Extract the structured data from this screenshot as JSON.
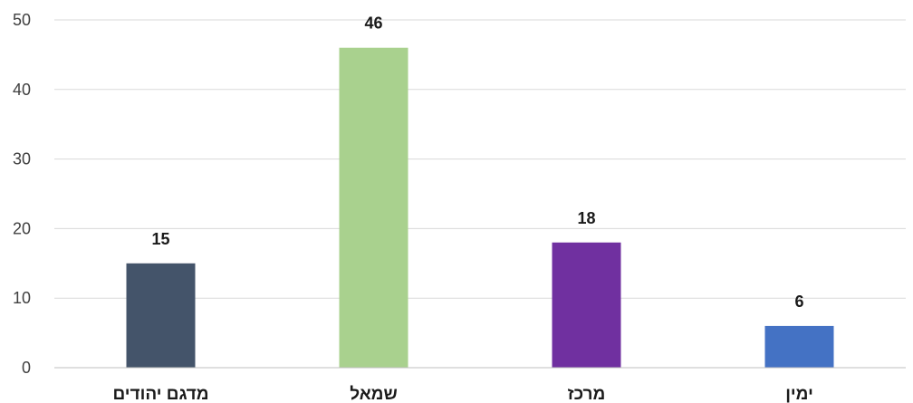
{
  "chart_data": {
    "type": "bar",
    "categories": [
      "מדגם יהודים",
      "שמאל",
      "מרכז",
      "ימין"
    ],
    "values": [
      15,
      46,
      18,
      6
    ],
    "colors": [
      "#44546a",
      "#a9d18e",
      "#7030a0",
      "#4472c4"
    ],
    "ylim": [
      0,
      50
    ],
    "yticks": [
      0,
      10,
      20,
      30,
      40,
      50
    ],
    "grid": true,
    "title": "",
    "xlabel": "",
    "ylabel": ""
  }
}
